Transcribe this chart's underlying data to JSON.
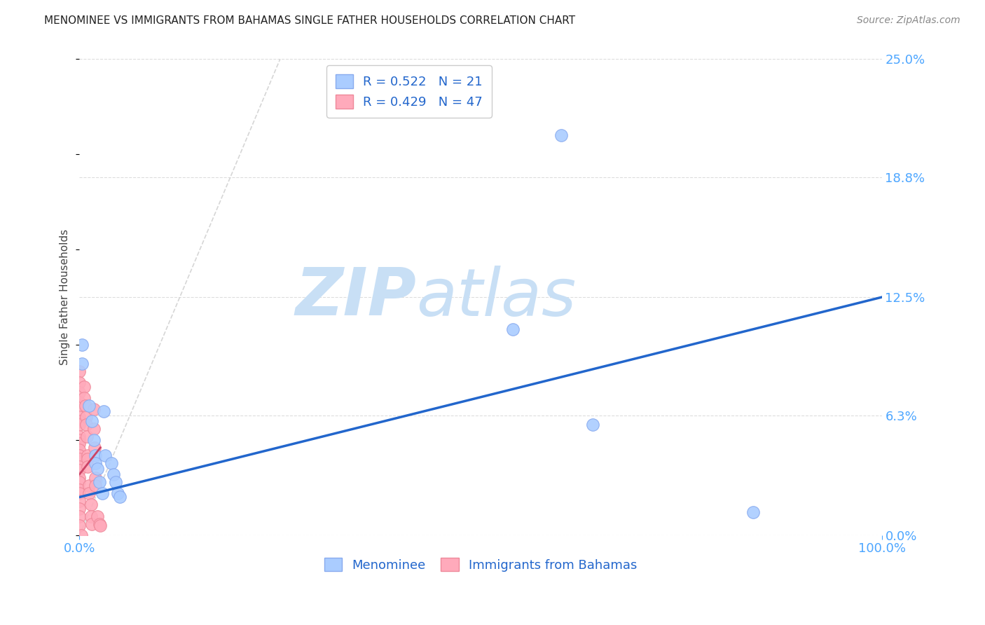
{
  "title": "MENOMINEE VS IMMIGRANTS FROM BAHAMAS SINGLE FATHER HOUSEHOLDS CORRELATION CHART",
  "source": "Source: ZipAtlas.com",
  "ylabel": "Single Father Households",
  "xlim": [
    0,
    1.0
  ],
  "ylim": [
    0,
    0.25
  ],
  "ytick_labels": [
    "0.0%",
    "6.3%",
    "12.5%",
    "18.8%",
    "25.0%"
  ],
  "ytick_values": [
    0.0,
    0.063,
    0.125,
    0.188,
    0.25
  ],
  "title_color": "#222222",
  "source_color": "#888888",
  "axis_label_color": "#444444",
  "tick_color": "#4da6ff",
  "xtick_bottom_labels": [
    "0.0%",
    "100.0%"
  ],
  "xtick_bottom_values": [
    0.0,
    1.0
  ],
  "watermark_zip": "ZIP",
  "watermark_atlas": "atlas",
  "watermark_color": "#c8dff5",
  "legend_r1": "R = 0.522",
  "legend_n1": "N = 21",
  "legend_r2": "R = 0.429",
  "legend_n2": "N = 47",
  "legend_text_color": "#2266cc",
  "menominee_color": "#aaccff",
  "bahamas_color": "#ffaabb",
  "menominee_edge": "#88aaee",
  "bahamas_edge": "#ee8899",
  "regression_blue": "#2266cc",
  "regression_pink": "#cc4466",
  "diagonal_color": "#cccccc",
  "grid_color": "#dddddd",
  "menominee_scatter": [
    [
      0.003,
      0.1
    ],
    [
      0.003,
      0.09
    ],
    [
      0.012,
      0.068
    ],
    [
      0.015,
      0.06
    ],
    [
      0.018,
      0.05
    ],
    [
      0.02,
      0.042
    ],
    [
      0.02,
      0.038
    ],
    [
      0.022,
      0.035
    ],
    [
      0.025,
      0.028
    ],
    [
      0.028,
      0.022
    ],
    [
      0.03,
      0.065
    ],
    [
      0.032,
      0.042
    ],
    [
      0.04,
      0.038
    ],
    [
      0.042,
      0.032
    ],
    [
      0.045,
      0.028
    ],
    [
      0.048,
      0.022
    ],
    [
      0.05,
      0.02
    ],
    [
      0.54,
      0.108
    ],
    [
      0.6,
      0.21
    ],
    [
      0.64,
      0.058
    ],
    [
      0.84,
      0.012
    ]
  ],
  "bahamas_scatter": [
    [
      0.0,
      0.086
    ],
    [
      0.0,
      0.08
    ],
    [
      0.0,
      0.075
    ],
    [
      0.0,
      0.07
    ],
    [
      0.0,
      0.068
    ],
    [
      0.0,
      0.062
    ],
    [
      0.0,
      0.06
    ],
    [
      0.0,
      0.058
    ],
    [
      0.0,
      0.052
    ],
    [
      0.0,
      0.05
    ],
    [
      0.0,
      0.048
    ],
    [
      0.0,
      0.045
    ],
    [
      0.0,
      0.042
    ],
    [
      0.0,
      0.04
    ],
    [
      0.0,
      0.036
    ],
    [
      0.0,
      0.034
    ],
    [
      0.0,
      0.03
    ],
    [
      0.0,
      0.028
    ],
    [
      0.0,
      0.024
    ],
    [
      0.0,
      0.022
    ],
    [
      0.0,
      0.018
    ],
    [
      0.0,
      0.014
    ],
    [
      0.0,
      0.01
    ],
    [
      0.0,
      0.005
    ],
    [
      0.002,
      0.0
    ],
    [
      0.006,
      0.078
    ],
    [
      0.006,
      0.072
    ],
    [
      0.007,
      0.068
    ],
    [
      0.008,
      0.062
    ],
    [
      0.008,
      0.058
    ],
    [
      0.009,
      0.052
    ],
    [
      0.01,
      0.042
    ],
    [
      0.01,
      0.04
    ],
    [
      0.01,
      0.036
    ],
    [
      0.012,
      0.026
    ],
    [
      0.012,
      0.022
    ],
    [
      0.014,
      0.016
    ],
    [
      0.014,
      0.01
    ],
    [
      0.015,
      0.006
    ],
    [
      0.018,
      0.066
    ],
    [
      0.018,
      0.056
    ],
    [
      0.019,
      0.046
    ],
    [
      0.02,
      0.03
    ],
    [
      0.02,
      0.026
    ],
    [
      0.022,
      0.01
    ],
    [
      0.025,
      0.006
    ],
    [
      0.026,
      0.005
    ]
  ],
  "menominee_reg_line": [
    [
      0.0,
      0.02
    ],
    [
      1.0,
      0.125
    ]
  ],
  "bahamas_reg_line": [
    [
      0.0,
      0.032
    ],
    [
      0.026,
      0.046
    ]
  ]
}
